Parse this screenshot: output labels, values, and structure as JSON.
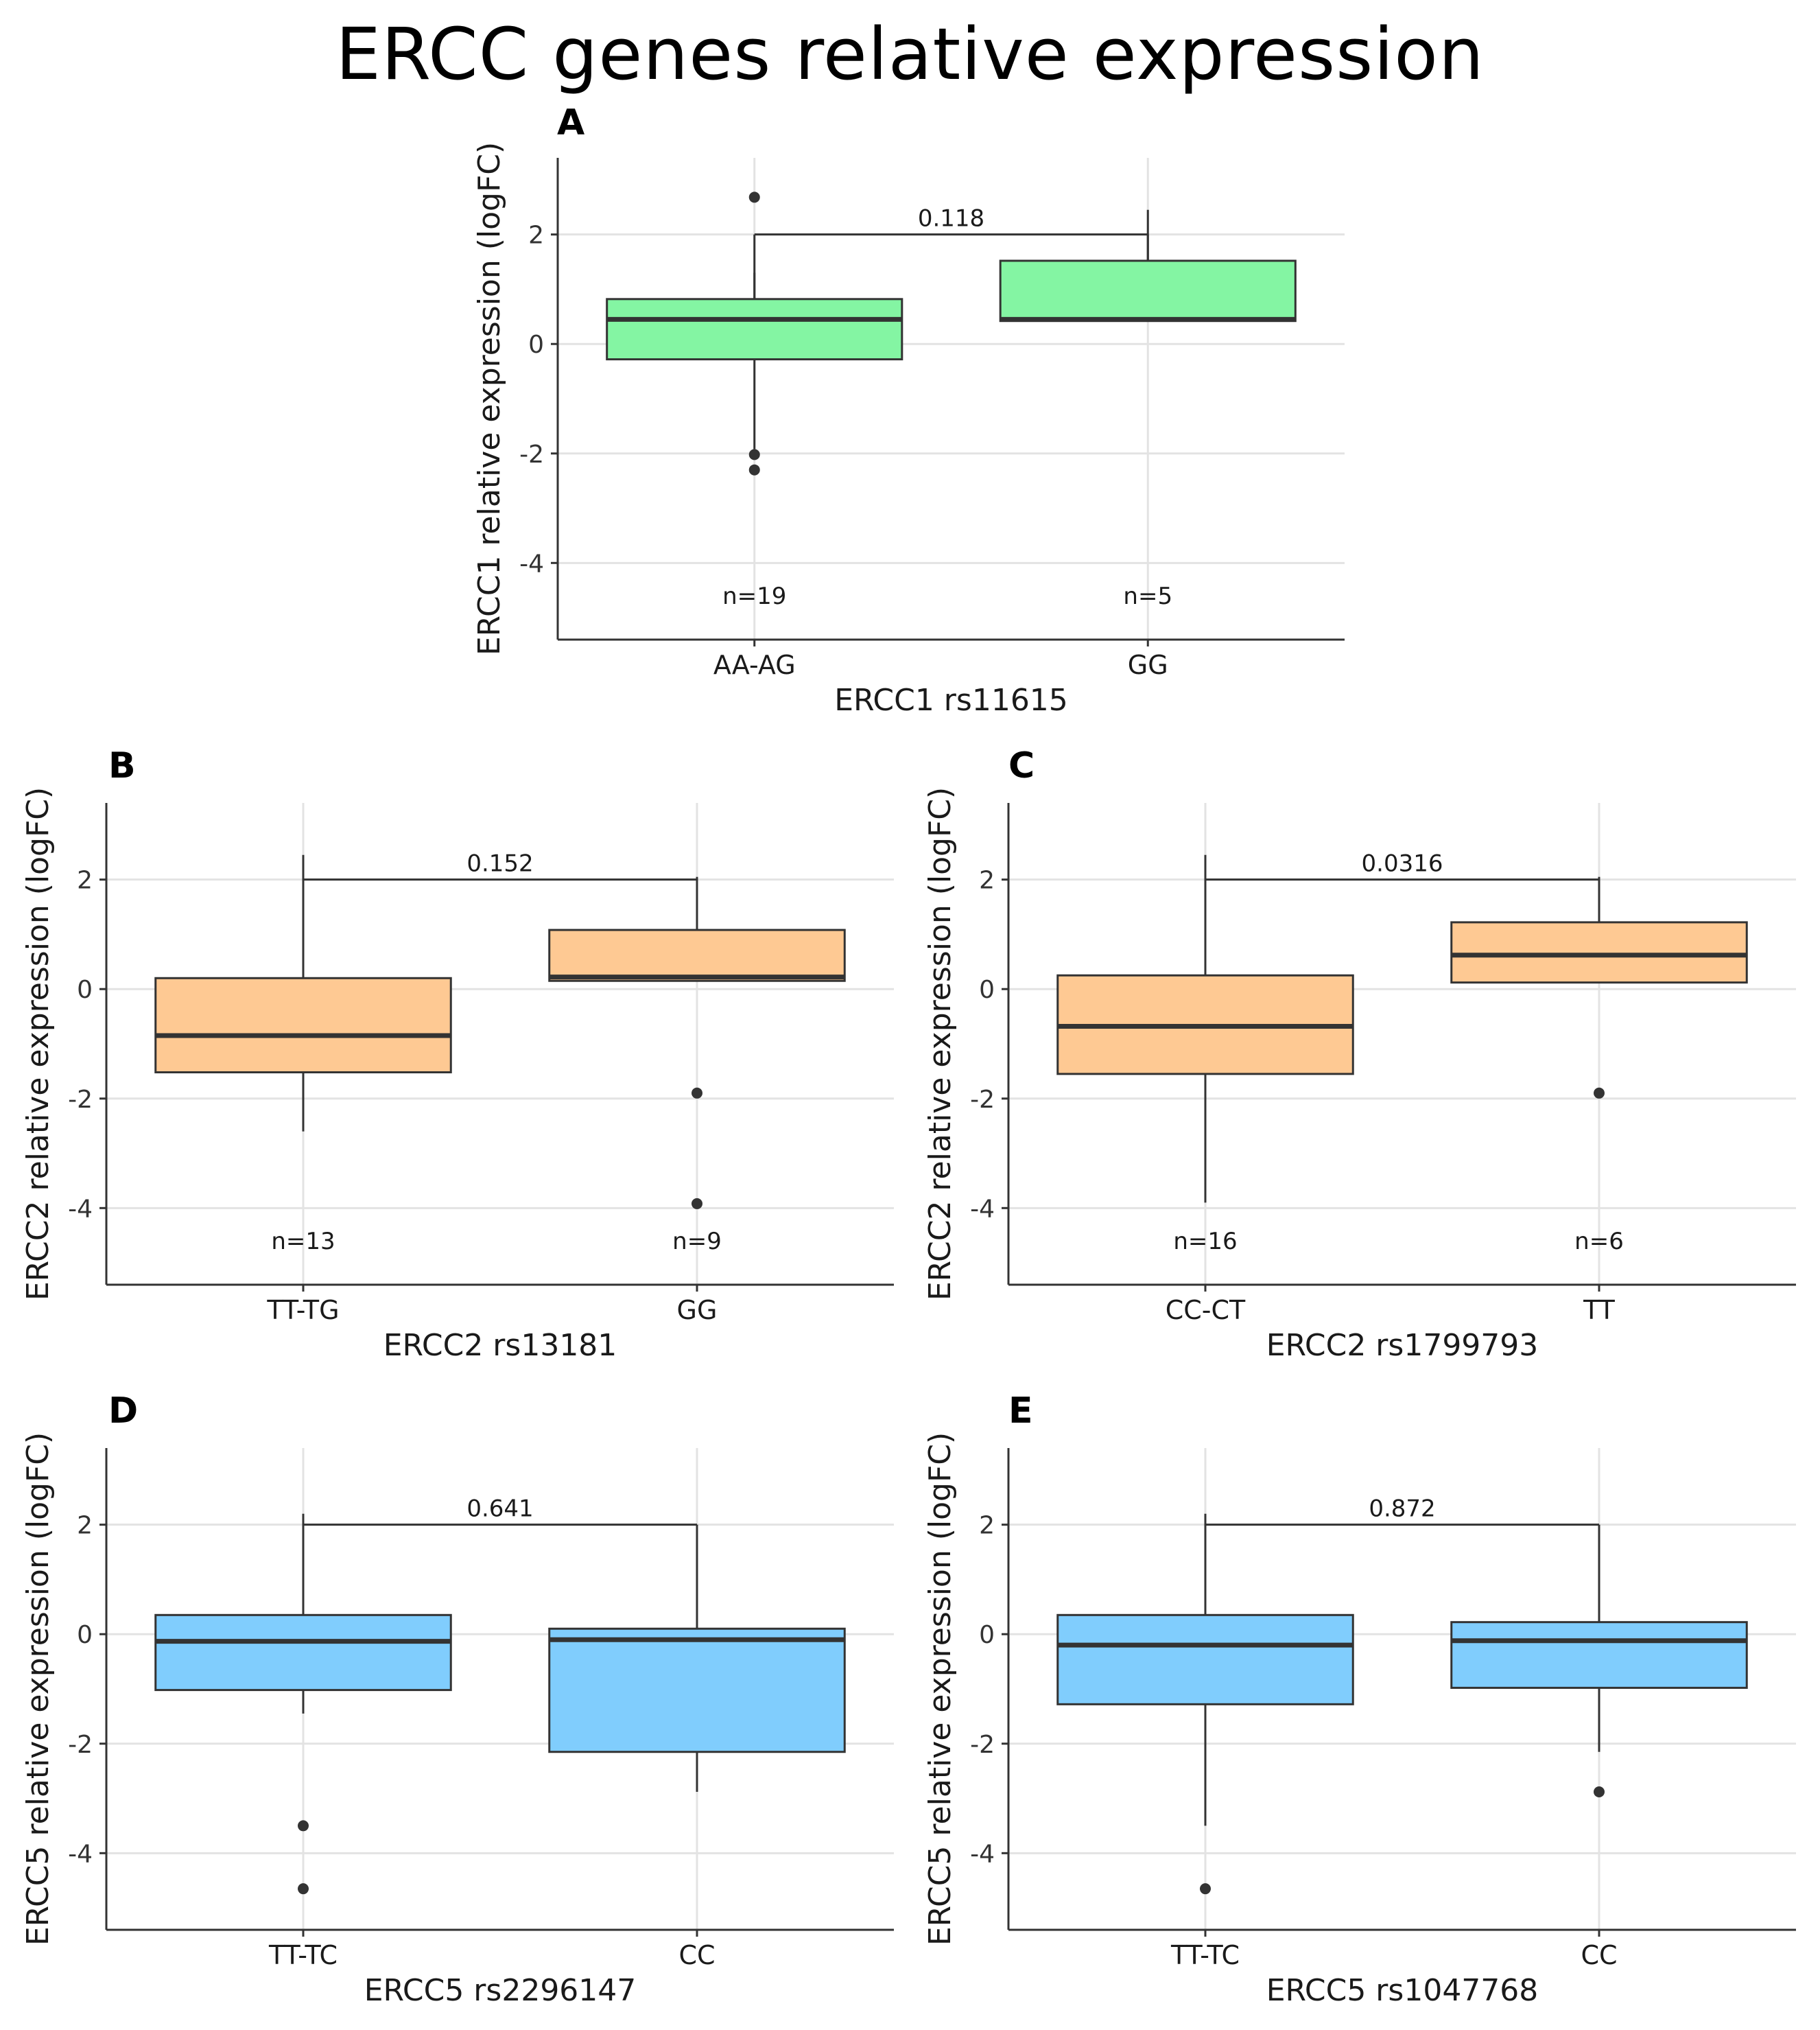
{
  "title": "ERCC genes relative expression",
  "chart_data": [
    {
      "type": "box",
      "panel": "A",
      "xlabel": "ERCC1 rs11615",
      "ylabel": "ERCC1 relative expression (logFC)",
      "ylim": [
        -5.4,
        3.4
      ],
      "yticks": [
        2,
        0,
        -2,
        -4
      ],
      "fill": "#84f5a3",
      "p_value": "0.118",
      "bracket_y": 2.0,
      "groups": [
        {
          "label": "AA-AG",
          "n_label": "n=19",
          "q1": -0.28,
          "median": 0.45,
          "q3": 0.82,
          "whisker_low": -1.92,
          "whisker_high": 1.3,
          "outliers": [
            2.68,
            -2.02,
            -2.3
          ]
        },
        {
          "label": "GG",
          "n_label": "n=5",
          "q1": 0.42,
          "median": 0.45,
          "q3": 1.52,
          "whisker_low": 0.42,
          "whisker_high": 2.45,
          "outliers": []
        }
      ]
    },
    {
      "type": "box",
      "panel": "B",
      "xlabel": "ERCC2 rs13181",
      "ylabel": "ERCC2 relative expression (logFC)",
      "ylim": [
        -5.4,
        3.4
      ],
      "yticks": [
        2,
        0,
        -2,
        -4
      ],
      "fill": "#fec993",
      "p_value": "0.152",
      "bracket_y": 2.0,
      "groups": [
        {
          "label": "TT-TG",
          "n_label": "n=13",
          "q1": -1.52,
          "median": -0.85,
          "q3": 0.2,
          "whisker_low": -2.6,
          "whisker_high": 2.45,
          "outliers": []
        },
        {
          "label": "GG",
          "n_label": "n=9",
          "q1": 0.15,
          "median": 0.22,
          "q3": 1.08,
          "whisker_low": 0.15,
          "whisker_high": 2.05,
          "outliers": [
            -1.9,
            -3.92
          ]
        }
      ]
    },
    {
      "type": "box",
      "panel": "C",
      "xlabel": "ERCC2 rs1799793",
      "ylabel": "ERCC2 relative expression (logFC)",
      "ylim": [
        -5.4,
        3.4
      ],
      "yticks": [
        2,
        0,
        -2,
        -4
      ],
      "fill": "#fec993",
      "p_value": "0.0316",
      "bracket_y": 2.0,
      "groups": [
        {
          "label": "CC-CT",
          "n_label": "n=16",
          "q1": -1.55,
          "median": -0.68,
          "q3": 0.25,
          "whisker_low": -3.9,
          "whisker_high": 2.45,
          "outliers": []
        },
        {
          "label": "TT",
          "n_label": "n=6",
          "q1": 0.12,
          "median": 0.62,
          "q3": 1.22,
          "whisker_low": 0.12,
          "whisker_high": 2.05,
          "outliers": [
            -1.9
          ]
        }
      ]
    },
    {
      "type": "box",
      "panel": "D",
      "xlabel": "ERCC5 rs2296147",
      "ylabel": "ERCC5 relative expression (logFC)",
      "ylim": [
        -5.4,
        3.4
      ],
      "yticks": [
        2,
        0,
        -2,
        -4
      ],
      "fill": "#80cdfd",
      "p_value": "0.641",
      "bracket_y": 2.0,
      "groups": [
        {
          "label": "TT-TC",
          "n_label": "",
          "q1": -1.02,
          "median": -0.13,
          "q3": 0.35,
          "whisker_low": -1.45,
          "whisker_high": 2.2,
          "outliers": [
            -3.5,
            -4.65
          ]
        },
        {
          "label": "CC",
          "n_label": "",
          "q1": -2.15,
          "median": -0.1,
          "q3": 0.1,
          "whisker_low": -2.88,
          "whisker_high": 0.55,
          "outliers": []
        }
      ]
    },
    {
      "type": "box",
      "panel": "E",
      "xlabel": "ERCC5 rs1047768",
      "ylabel": "ERCC5 relative expression (logFC)",
      "ylim": [
        -5.4,
        3.4
      ],
      "yticks": [
        2,
        0,
        -2,
        -4
      ],
      "fill": "#80cdfd",
      "p_value": "0.872",
      "bracket_y": 2.0,
      "groups": [
        {
          "label": "TT-TC",
          "n_label": "",
          "q1": -1.28,
          "median": -0.2,
          "q3": 0.35,
          "whisker_low": -3.5,
          "whisker_high": 2.2,
          "outliers": [
            -4.65
          ]
        },
        {
          "label": "CC",
          "n_label": "",
          "q1": -0.98,
          "median": -0.12,
          "q3": 0.22,
          "whisker_low": -2.15,
          "whisker_high": 0.55,
          "outliers": [
            -2.88
          ]
        }
      ]
    }
  ]
}
